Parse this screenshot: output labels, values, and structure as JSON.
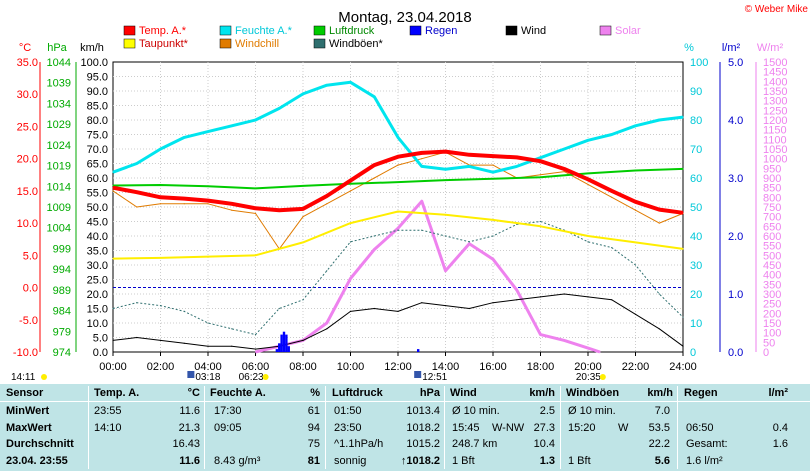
{
  "chart_data": {
    "type": "line",
    "title": "Montag, 23.04.2018",
    "copyright": "© Weber Mike",
    "x_ticks": [
      "00:00",
      "02:00",
      "04:00",
      "06:00",
      "08:00",
      "10:00",
      "12:00",
      "14:00",
      "16:00",
      "18:00",
      "20:00",
      "22:00",
      "24:00"
    ],
    "axes": {
      "temp": {
        "label": "°C",
        "ticks": [
          "35.0",
          "30.0",
          "25.0",
          "20.0",
          "15.0",
          "10.0",
          "5.0",
          "0.0",
          "-5.0",
          "-10.0"
        ],
        "range": [
          -10,
          35
        ]
      },
      "pressure": {
        "label": "hPa",
        "ticks": [
          "1044",
          "1039",
          "1034",
          "1029",
          "1024",
          "1019",
          "1014",
          "1009",
          "1004",
          "999",
          "994",
          "989",
          "984",
          "979",
          "974"
        ],
        "range": [
          974,
          1044
        ]
      },
      "wind": {
        "label": "km/h",
        "ticks": [
          "100.0",
          "95.0",
          "90.0",
          "85.0",
          "80.0",
          "75.0",
          "70.0",
          "65.0",
          "60.0",
          "55.0",
          "50.0",
          "45.0",
          "40.0",
          "35.0",
          "30.0",
          "25.0",
          "20.0",
          "15.0",
          "10.0",
          "5.0",
          "0.0"
        ],
        "range": [
          0,
          100
        ]
      },
      "humidity": {
        "label": "%",
        "ticks": [
          "100",
          "90",
          "80",
          "70",
          "60",
          "50",
          "40",
          "30",
          "20",
          "10",
          "0"
        ],
        "range": [
          0,
          100
        ]
      },
      "rain": {
        "label": "l/m²",
        "ticks": [
          "5.0",
          "4.0",
          "3.0",
          "2.0",
          "1.0",
          "0.0"
        ],
        "range": [
          0,
          5
        ]
      },
      "solar": {
        "label": "W/m²",
        "ticks": [
          "1500",
          "1450",
          "1400",
          "1350",
          "1300",
          "1250",
          "1200",
          "1150",
          "1100",
          "1050",
          "1000",
          "950",
          "900",
          "850",
          "800",
          "750",
          "700",
          "650",
          "600",
          "550",
          "500",
          "450",
          "400",
          "350",
          "300",
          "250",
          "200",
          "150",
          "100",
          "50",
          "0"
        ],
        "range": [
          0,
          1500
        ]
      }
    },
    "legend": [
      {
        "name": "Temp. A.*",
        "color": "#ff0000"
      },
      {
        "name": "Feuchte A.*",
        "color": "#00e5ee"
      },
      {
        "name": "Luftdruck",
        "color": "#00cc00"
      },
      {
        "name": "Regen",
        "color": "#0000ff"
      },
      {
        "name": "Wind",
        "color": "#000000"
      },
      {
        "name": "Solar",
        "color": "#ee82ee"
      },
      {
        "name": "Taupunkt*",
        "color": "#ffff00"
      },
      {
        "name": "Windchill",
        "color": "#e07b00"
      },
      {
        "name": "Windböen*",
        "color": "#2f6f6f"
      }
    ],
    "series": [
      {
        "name": "Temp. A.*",
        "axis": "temp",
        "x": [
          0,
          1,
          2,
          3,
          4,
          5,
          6,
          7,
          8,
          9,
          10,
          11,
          12,
          13,
          14,
          15,
          16,
          17,
          18,
          19,
          20,
          21,
          22,
          23,
          24
        ],
        "values": [
          15.5,
          14.8,
          14.0,
          13.8,
          13.5,
          13.0,
          12.3,
          12.0,
          12.2,
          14.2,
          16.6,
          19.0,
          20.3,
          20.9,
          21.1,
          20.6,
          20.4,
          20.2,
          19.6,
          18.4,
          16.8,
          15.0,
          13.3,
          12.1,
          11.6
        ]
      },
      {
        "name": "Feuchte A.*",
        "axis": "humidity",
        "x": [
          0,
          1,
          2,
          3,
          4,
          5,
          6,
          7,
          8,
          9,
          10,
          11,
          12,
          13,
          14,
          15,
          16,
          17,
          18,
          19,
          20,
          21,
          22,
          23,
          24
        ],
        "values": [
          62,
          65,
          70,
          74,
          76,
          78,
          80,
          84,
          89,
          92,
          93,
          88,
          74,
          64,
          63,
          64,
          62,
          64,
          67,
          70,
          73,
          75,
          78,
          80,
          81
        ]
      },
      {
        "name": "Luftdruck",
        "axis": "pressure",
        "x": [
          0,
          2,
          4,
          6,
          8,
          10,
          12,
          14,
          16,
          18,
          20,
          22,
          24
        ],
        "values": [
          1014.2,
          1014.3,
          1014.0,
          1013.5,
          1014.1,
          1014.6,
          1015.0,
          1015.5,
          1015.8,
          1016.2,
          1017.1,
          1017.8,
          1018.2
        ]
      },
      {
        "name": "Taupunkt*",
        "axis": "temp",
        "x": [
          0,
          2,
          4,
          6,
          8,
          10,
          12,
          14,
          16,
          18,
          20,
          22,
          24
        ],
        "values": [
          4.5,
          4.6,
          4.8,
          5.0,
          7.0,
          10.0,
          11.8,
          11.3,
          10.5,
          9.5,
          8.0,
          7.0,
          6.0
        ]
      },
      {
        "name": "Windchill",
        "axis": "temp",
        "x": [
          0,
          1,
          2,
          3,
          4,
          5,
          6,
          7,
          8,
          9,
          10,
          11,
          12,
          13,
          14,
          15,
          16,
          17,
          18,
          19,
          20,
          21,
          22,
          23,
          24
        ],
        "values": [
          15,
          12.5,
          13,
          13,
          13,
          12,
          11.5,
          6,
          11,
          13,
          15,
          17,
          19,
          20,
          21,
          19,
          19,
          17,
          17.5,
          18,
          16,
          14,
          12,
          10,
          11.5
        ]
      },
      {
        "name": "Wind",
        "axis": "wind",
        "x": [
          0,
          1,
          2,
          3,
          4,
          5,
          6,
          7,
          8,
          9,
          10,
          11,
          12,
          13,
          14,
          15,
          16,
          17,
          18,
          19,
          20,
          21,
          22,
          23,
          24
        ],
        "values": [
          4,
          5,
          4,
          3,
          2,
          2,
          1,
          2,
          4,
          8,
          14,
          15,
          14,
          17,
          16,
          15,
          17,
          18,
          19,
          20,
          19,
          18,
          13,
          8,
          2
        ]
      },
      {
        "name": "Windböen*",
        "axis": "wind",
        "x": [
          0,
          1,
          2,
          3,
          4,
          5,
          6,
          7,
          8,
          9,
          10,
          11,
          12,
          13,
          14,
          15,
          16,
          17,
          18,
          19,
          20,
          21,
          22,
          23,
          24
        ],
        "values": [
          15,
          17,
          16,
          14,
          10,
          8,
          6,
          15,
          18,
          28,
          38,
          40,
          42,
          42,
          40,
          38,
          40,
          44,
          45,
          42,
          38,
          36,
          30,
          20,
          12
        ]
      },
      {
        "name": "Solar",
        "axis": "solar",
        "x": [
          6.0,
          7,
          8,
          9,
          10,
          11,
          12,
          13,
          14,
          15,
          16,
          17,
          18,
          19,
          20,
          20.5
        ],
        "values": [
          0,
          30,
          60,
          150,
          380,
          530,
          640,
          780,
          420,
          560,
          480,
          320,
          90,
          60,
          20,
          0
        ]
      },
      {
        "name": "Regen",
        "axis": "rain",
        "x": [
          6.9,
          7.0,
          7.1,
          7.2,
          7.3,
          7.4,
          12.85
        ],
        "values": [
          0.05,
          0.15,
          0.3,
          0.35,
          0.3,
          0.1,
          0.05
        ]
      }
    ],
    "markers": {
      "sunrise": "06:23",
      "sunset": "20:35",
      "moon1": "03:18",
      "moon2": "12:51",
      "left_time": "14:11"
    },
    "grid": true,
    "ref_line": {
      "axis": "temp",
      "value": 0
    }
  },
  "table": {
    "header": {
      "sensor": "Sensor",
      "temp": "Temp. A.",
      "temp_unit": "°C",
      "hum": "Feuchte A.",
      "hum_unit": "%",
      "press": "Luftdruck",
      "press_unit": "hPa",
      "wind": "Wind",
      "wind_unit": "km/h",
      "gust": "Windböen",
      "gust_unit": "km/h",
      "rain": "Regen",
      "rain_unit": "l/m²"
    },
    "rows": [
      {
        "label": "MinWert",
        "t1": "23:55",
        "t2": "11.6",
        "h1": "17:30",
        "h2": "61",
        "p1": "01:50",
        "p2": "1013.4",
        "w1": "Ø 10 min.",
        "w2": "2.5",
        "g1": "Ø 10 min.",
        "g2": "7.0",
        "r1": "",
        "r2": ""
      },
      {
        "label": "MaxWert",
        "t1": "14:10",
        "t2": "21.3",
        "h1": "09:05",
        "h2": "94",
        "p1": "23:50",
        "p2": "1018.2",
        "w1": "15:45",
        "w1b": "W-NW",
        "w2": "27.3",
        "g1": "15:20",
        "g1b": "W",
        "g2": "53.5",
        "r1": "06:50",
        "r2": "0.4"
      },
      {
        "label": "Durchschnitt",
        "t1": "",
        "t2": "16.43",
        "h1": "",
        "h2": "75",
        "p1": "^1.1hPa/h",
        "p2": "1015.2",
        "w1": "248.7 km",
        "w2": "10.4",
        "g1": "",
        "g2": "22.2",
        "r1": "Gesamt:",
        "r2": "1.6"
      },
      {
        "label": "23.04. 23:55",
        "t1": "",
        "t2": "11.6",
        "h1": "8.43 g/m³",
        "h2": "81",
        "p1": "sonnig",
        "p2": "↑1018.2",
        "w1": "1 Bft",
        "w2": "1.3",
        "g1": "1 Bft",
        "g2": "5.6",
        "r1": "1.6 l/m²",
        "r2": ""
      }
    ]
  }
}
